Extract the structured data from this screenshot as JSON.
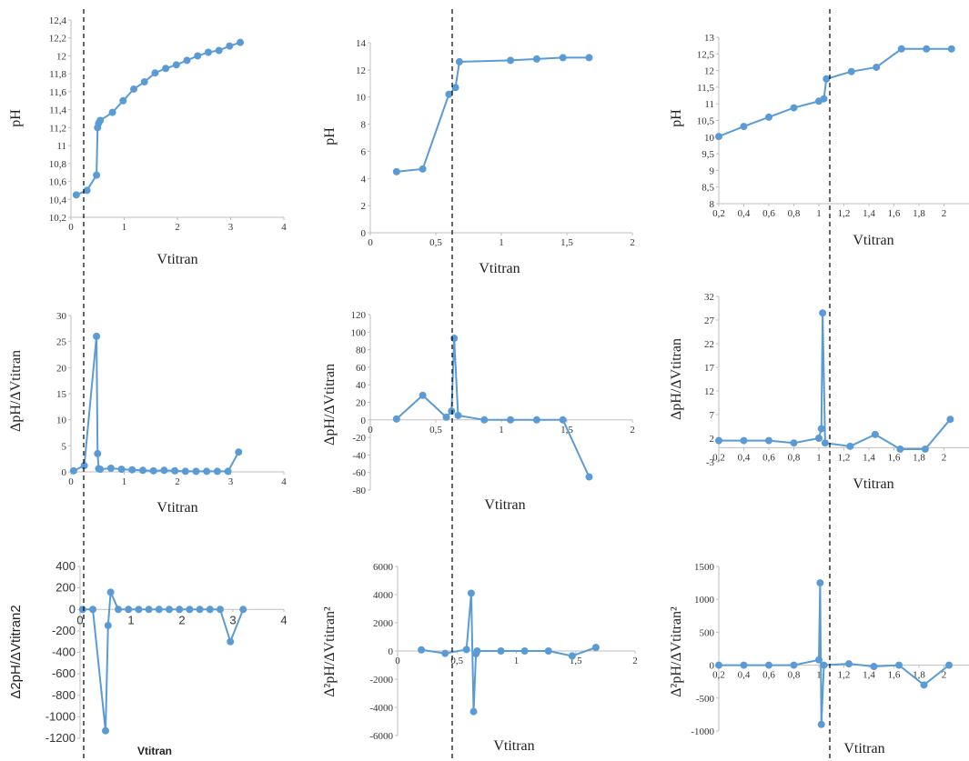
{
  "style": {
    "series_color": "#5b9bd5",
    "axis_color": "#bfbfbf",
    "dashed_line_color": "#000000"
  },
  "chart_data": [
    {
      "id": "c1",
      "type": "scatter-line",
      "xlabel": "Vtitran",
      "ylabel": "pH",
      "xlim": [
        0,
        4
      ],
      "ylim": [
        10.2,
        12.4
      ],
      "xticks": [
        0,
        1,
        2,
        3,
        4
      ],
      "xtick_labels": [
        "0",
        "1",
        "2",
        "3",
        "4"
      ],
      "yticks": [
        10.2,
        10.4,
        10.6,
        10.8,
        11,
        11.2,
        11.4,
        11.6,
        11.8,
        12,
        12.2,
        12.4
      ],
      "ytick_labels": [
        "10,2",
        "10,4",
        "10,6",
        "10,8",
        "11",
        "11,2",
        "11,4",
        "11,6",
        "11,8",
        "12",
        "12,2",
        "12,4"
      ],
      "x": [
        0.1,
        0.3,
        0.48,
        0.5,
        0.52,
        0.55,
        0.78,
        0.98,
        1.18,
        1.38,
        1.58,
        1.78,
        1.98,
        2.18,
        2.38,
        2.58,
        2.78,
        2.98,
        3.18
      ],
      "y": [
        10.45,
        10.5,
        10.67,
        11.2,
        11.25,
        11.28,
        11.37,
        11.5,
        11.63,
        11.71,
        11.81,
        11.86,
        11.9,
        11.95,
        12.0,
        12.04,
        12.06,
        12.11,
        12.15
      ]
    },
    {
      "id": "c2",
      "type": "scatter-line",
      "xlabel": "Vtitran",
      "ylabel": "pH",
      "xlim": [
        0,
        2
      ],
      "ylim": [
        0,
        14
      ],
      "xticks": [
        0,
        0.5,
        1,
        1.5,
        2
      ],
      "xtick_labels": [
        "0",
        "0,5",
        "1",
        "1,5",
        "2"
      ],
      "yticks": [
        0,
        2,
        4,
        6,
        8,
        10,
        12,
        14
      ],
      "ytick_labels": [
        "0",
        "2",
        "4",
        "6",
        "8",
        "10",
        "12",
        "14"
      ],
      "x": [
        0.2,
        0.4,
        0.6,
        0.65,
        0.68,
        1.07,
        1.27,
        1.47,
        1.67
      ],
      "y": [
        4.5,
        4.7,
        10.2,
        10.7,
        12.6,
        12.7,
        12.8,
        12.9,
        12.9
      ]
    },
    {
      "id": "c3",
      "type": "scatter-line",
      "xlabel": "Vtitran",
      "ylabel": "pH",
      "xlim": [
        0.2,
        2.2
      ],
      "ylim": [
        8,
        13
      ],
      "xticks": [
        0.2,
        0.4,
        0.6,
        0.8,
        1,
        1.2,
        1.4,
        1.6,
        1.8,
        2
      ],
      "xtick_labels": [
        "0,2",
        "0,4",
        "0,6",
        "0,8",
        "1",
        "1,2",
        "1,4",
        "1,6",
        "1,8",
        "2"
      ],
      "yticks": [
        8,
        8.5,
        9,
        9.5,
        10,
        10.5,
        11,
        11.5,
        12,
        12.5,
        13
      ],
      "ytick_labels": [
        "8",
        "8,5",
        "9",
        "9,5",
        "10",
        "10,5",
        "11",
        "11,5",
        "12",
        "12,5",
        "13"
      ],
      "x": [
        0.2,
        0.4,
        0.6,
        0.8,
        1.0,
        1.04,
        1.06,
        1.26,
        1.46,
        1.66,
        1.86,
        2.06
      ],
      "y": [
        10.02,
        10.32,
        10.6,
        10.88,
        11.08,
        11.15,
        11.75,
        11.97,
        12.1,
        12.65,
        12.65,
        12.65
      ]
    },
    {
      "id": "c4",
      "type": "scatter-line",
      "xlabel": "Vtitran",
      "ylabel": "ΔpH/ΔVtitran",
      "xlim": [
        0,
        4
      ],
      "ylim": [
        0,
        30
      ],
      "xticks": [
        0,
        1,
        2,
        3,
        4
      ],
      "xtick_labels": [
        "0",
        "1",
        "2",
        "3",
        "4"
      ],
      "yticks": [
        0,
        5,
        10,
        15,
        20,
        25,
        30
      ],
      "ytick_labels": [
        "0",
        "5",
        "10",
        "15",
        "20",
        "25",
        "30"
      ],
      "x": [
        0.05,
        0.25,
        0.48,
        0.5,
        0.52,
        0.55,
        0.75,
        0.95,
        1.15,
        1.35,
        1.55,
        1.75,
        1.95,
        2.15,
        2.35,
        2.55,
        2.75,
        2.95,
        3.15
      ],
      "y": [
        0.2,
        1.2,
        26,
        3.5,
        0.6,
        0.5,
        0.7,
        0.5,
        0.4,
        0.3,
        0.2,
        0.3,
        0.2,
        0.1,
        0.1,
        0.1,
        0.1,
        0.1,
        3.8
      ]
    },
    {
      "id": "c5",
      "type": "scatter-line",
      "xlabel": "Vtitran",
      "ylabel": "ΔpH/ΔVtitran",
      "xlim": [
        0,
        2
      ],
      "ylim": [
        -80,
        120
      ],
      "xticks": [
        0,
        0.5,
        1,
        1.5,
        2
      ],
      "xtick_labels": [
        "0",
        "0,5",
        "1",
        "1,5",
        "2"
      ],
      "yticks": [
        -80,
        -60,
        -40,
        -20,
        0,
        20,
        40,
        60,
        80,
        100,
        120
      ],
      "ytick_labels": [
        "-80",
        "-60",
        "-40",
        "-20",
        "0",
        "20",
        "40",
        "60",
        "80",
        "100",
        "120"
      ],
      "x": [
        0.2,
        0.4,
        0.58,
        0.62,
        0.64,
        0.67,
        0.87,
        1.07,
        1.27,
        1.47,
        1.67
      ],
      "y": [
        1,
        28,
        3,
        10,
        93,
        5,
        0,
        0,
        0,
        0,
        -65
      ]
    },
    {
      "id": "c6",
      "type": "scatter-line",
      "xlabel": "Vtitran",
      "ylabel": "ΔpH/ΔVtitran",
      "xlim": [
        0.2,
        2.2
      ],
      "ylim": [
        -3,
        32
      ],
      "xticks": [
        0.2,
        0.4,
        0.6,
        0.8,
        1,
        1.2,
        1.4,
        1.6,
        1.8,
        2
      ],
      "xtick_labels": [
        "0,2",
        "0,4",
        "0,6",
        "0,8",
        "1",
        "1,2",
        "1,4",
        "1,6",
        "1,8",
        "2"
      ],
      "yticks": [
        -3,
        2,
        7,
        12,
        17,
        22,
        27,
        32
      ],
      "ytick_labels": [
        "-3",
        "2",
        "7",
        "12",
        "17",
        "22",
        "27",
        "32"
      ],
      "x": [
        0.2,
        0.4,
        0.6,
        0.8,
        1.0,
        1.02,
        1.03,
        1.05,
        1.25,
        1.45,
        1.65,
        1.85,
        2.05
      ],
      "y": [
        1.5,
        1.5,
        1.5,
        1.0,
        2.0,
        4.0,
        28.5,
        1.0,
        0.3,
        2.8,
        -0.3,
        -0.3,
        6.0
      ]
    },
    {
      "id": "c7",
      "type": "scatter-line",
      "xlabel": "Vtitran",
      "ylabel": "Δ2pH/ΔVtitran2",
      "xlim": [
        0,
        4
      ],
      "ylim": [
        -1200,
        400
      ],
      "xticks": [
        0,
        1,
        2,
        3,
        4
      ],
      "xtick_labels": [
        "0",
        "1",
        "2",
        "3",
        "4"
      ],
      "yticks": [
        -1200,
        -1000,
        -800,
        -600,
        -400,
        -200,
        0,
        200,
        400
      ],
      "ytick_labels": [
        "-1200",
        "-1000",
        "-800",
        "-600",
        "-400",
        "-200",
        "0",
        "200",
        "400"
      ],
      "x": [
        0.05,
        0.25,
        0.5,
        0.55,
        0.6,
        0.75,
        0.95,
        1.15,
        1.35,
        1.55,
        1.75,
        1.95,
        2.15,
        2.35,
        2.55,
        2.75,
        2.95,
        3.2
      ],
      "y": [
        0,
        0,
        -1130,
        -150,
        160,
        0,
        0,
        0,
        0,
        0,
        0,
        0,
        0,
        0,
        0,
        0,
        -300,
        0
      ]
    },
    {
      "id": "c8",
      "type": "scatter-line",
      "xlabel": "Vtitran",
      "ylabel": "Δ²pH/ΔVtitran²",
      "xlim": [
        0,
        2
      ],
      "ylim": [
        -6000,
        6000
      ],
      "xticks": [
        0,
        0.5,
        1,
        1.5,
        2
      ],
      "xtick_labels": [
        "0",
        "0,5",
        "1",
        "1,5",
        "2"
      ],
      "yticks": [
        -6000,
        -4000,
        -2000,
        0,
        2000,
        4000,
        6000
      ],
      "ytick_labels": [
        "-6000",
        "-4000",
        "-2000",
        "0",
        "2000",
        "4000",
        "6000"
      ],
      "x": [
        0.2,
        0.4,
        0.58,
        0.62,
        0.64,
        0.66,
        0.67,
        0.87,
        1.07,
        1.27,
        1.47,
        1.67
      ],
      "y": [
        80,
        -170,
        100,
        4100,
        -4300,
        -200,
        0,
        0,
        0,
        0,
        -350,
        250
      ]
    },
    {
      "id": "c9",
      "type": "scatter-line",
      "xlabel": "Vtitran",
      "ylabel": "Δ²pH/ΔVtitran²",
      "xlim": [
        0.2,
        2.2
      ],
      "ylim": [
        -1000,
        1500
      ],
      "xticks": [
        0.2,
        0.4,
        0.6,
        0.8,
        1,
        1.2,
        1.4,
        1.6,
        1.8,
        2
      ],
      "xtick_labels": [
        "0,2",
        "0,4",
        "0,6",
        "0,8",
        "1",
        "1,2",
        "1,4",
        "1,6",
        "1,8",
        "2"
      ],
      "yticks": [
        -1000,
        -500,
        0,
        500,
        1000,
        1500
      ],
      "ytick_labels": [
        "-1000",
        "-500",
        "0",
        "500",
        "1000",
        "1500"
      ],
      "x": [
        0.2,
        0.4,
        0.6,
        0.8,
        1.0,
        1.01,
        1.02,
        1.04,
        1.24,
        1.44,
        1.64,
        1.84,
        2.04
      ],
      "y": [
        0,
        0,
        0,
        0,
        80,
        1250,
        -900,
        0,
        20,
        -20,
        0,
        -300,
        0
      ]
    }
  ]
}
